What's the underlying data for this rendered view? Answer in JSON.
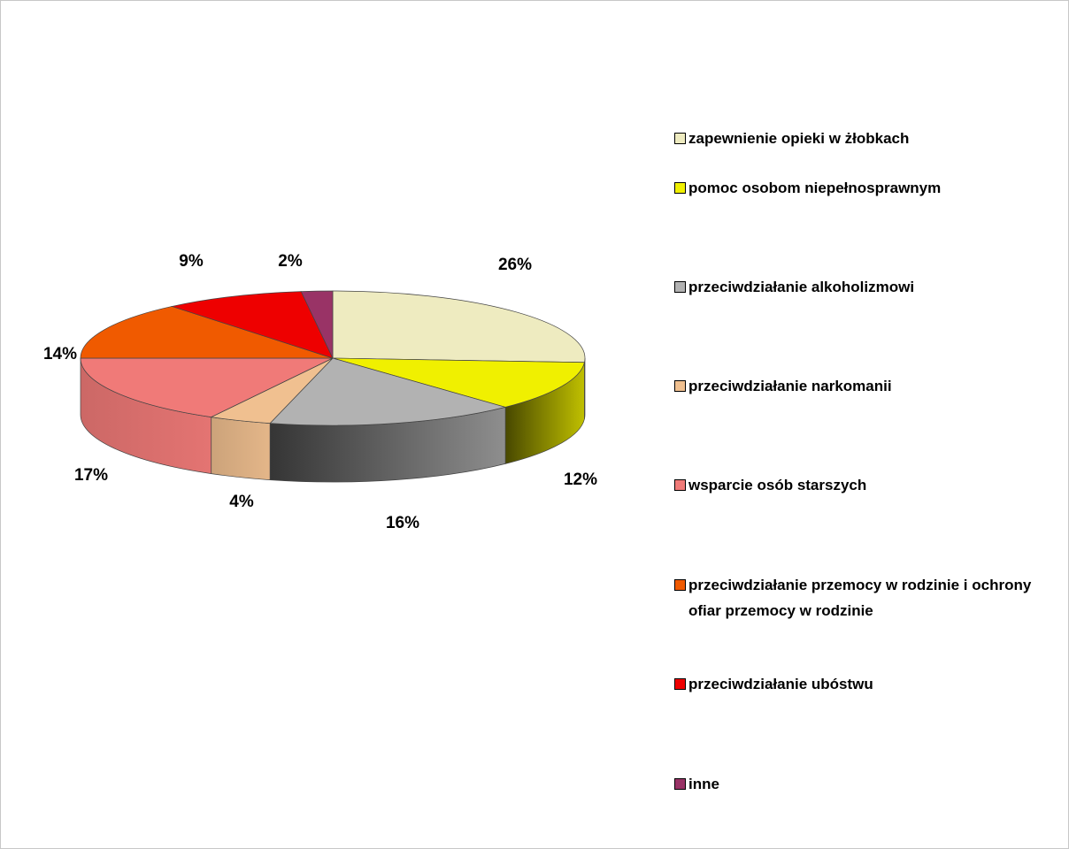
{
  "chart_data": {
    "type": "pie",
    "categories": [
      "zapewnienie opieki w żłobkach",
      "pomoc osobom niepełnosprawnym",
      "przeciwdziałanie alkoholizmowi",
      "przeciwdziałanie narkomanii",
      "wsparcie osób starszych",
      "przeciwdziałanie przemocy w rodzinie i ochrony ofiar przemocy w rodzinie",
      "przeciwdziałanie ubóstwu",
      "inne"
    ],
    "values": [
      26,
      12,
      16,
      4,
      17,
      14,
      9,
      2
    ],
    "value_labels": [
      "26%",
      "12%",
      "16%",
      "4%",
      "17%",
      "14%",
      "9%",
      "2%"
    ],
    "colors": [
      "#eeebc0",
      "#f0f000",
      "#b2b2b2",
      "#f0c090",
      "#f07a78",
      "#f05a00",
      "#ee0000",
      "#993366"
    ],
    "legend": "right"
  }
}
